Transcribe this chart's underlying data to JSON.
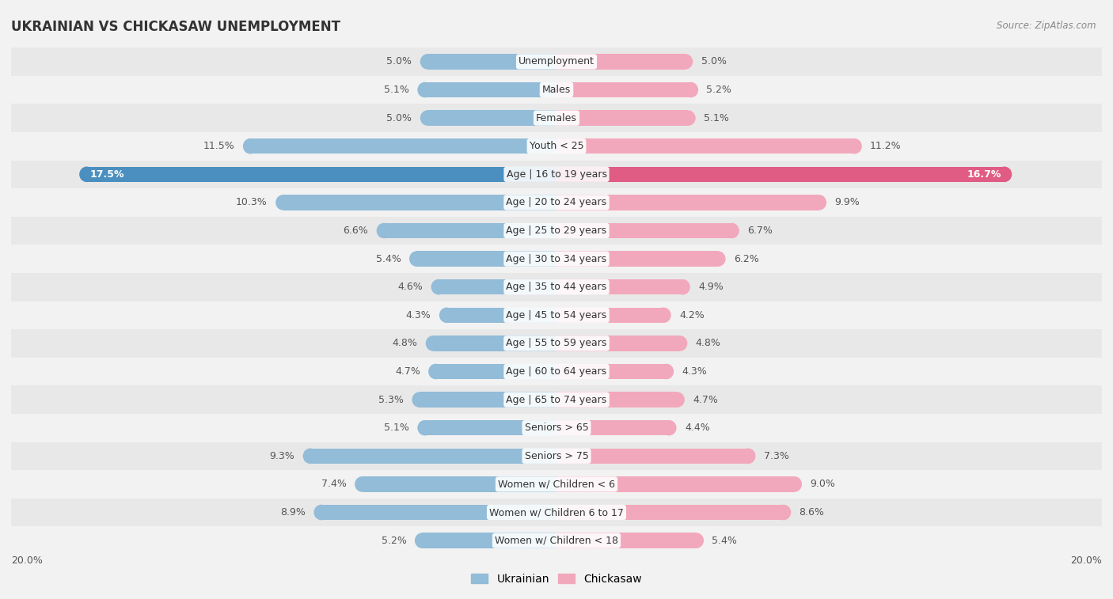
{
  "title": "UKRAINIAN VS CHICKASAW UNEMPLOYMENT",
  "source": "Source: ZipAtlas.com",
  "categories": [
    "Unemployment",
    "Males",
    "Females",
    "Youth < 25",
    "Age | 16 to 19 years",
    "Age | 20 to 24 years",
    "Age | 25 to 29 years",
    "Age | 30 to 34 years",
    "Age | 35 to 44 years",
    "Age | 45 to 54 years",
    "Age | 55 to 59 years",
    "Age | 60 to 64 years",
    "Age | 65 to 74 years",
    "Seniors > 65",
    "Seniors > 75",
    "Women w/ Children < 6",
    "Women w/ Children 6 to 17",
    "Women w/ Children < 18"
  ],
  "ukrainian": [
    5.0,
    5.1,
    5.0,
    11.5,
    17.5,
    10.3,
    6.6,
    5.4,
    4.6,
    4.3,
    4.8,
    4.7,
    5.3,
    5.1,
    9.3,
    7.4,
    8.9,
    5.2
  ],
  "chickasaw": [
    5.0,
    5.2,
    5.1,
    11.2,
    16.7,
    9.9,
    6.7,
    6.2,
    4.9,
    4.2,
    4.8,
    4.3,
    4.7,
    4.4,
    7.3,
    9.0,
    8.6,
    5.4
  ],
  "ukrainian_color": "#92bcd8",
  "chickasaw_color": "#f2a8bc",
  "ukrainian_highlight_color": "#4a8fc0",
  "chickasaw_highlight_color": "#e05c85",
  "bg_color": "#f2f2f2",
  "row_color_even": "#e8e8e8",
  "row_color_odd": "#f2f2f2",
  "max_val": 20.0,
  "label_fontsize": 9.0,
  "title_fontsize": 12,
  "legend_fontsize": 10,
  "bar_height": 0.55
}
